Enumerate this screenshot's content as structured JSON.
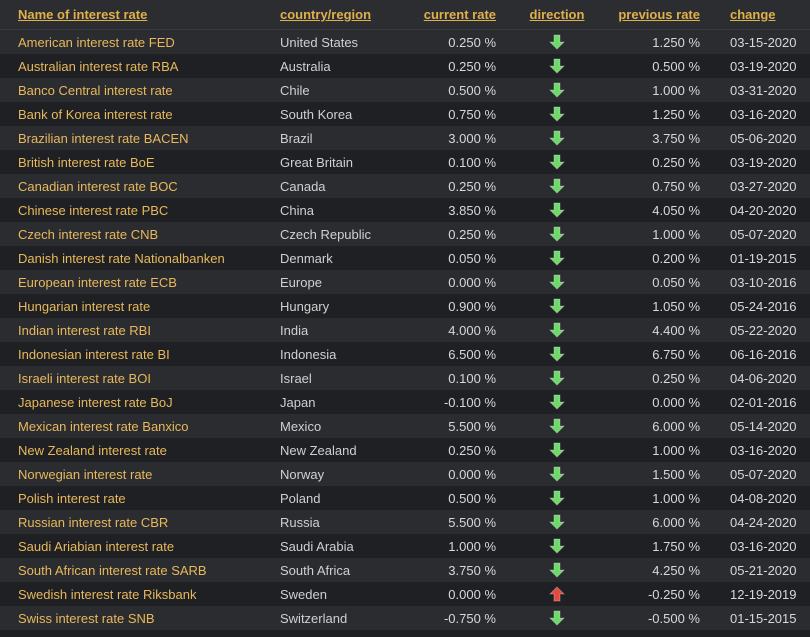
{
  "headers": {
    "name": "Name of interest rate",
    "country": "country/region",
    "current": "current rate",
    "direction": "direction",
    "previous": "previous rate",
    "change": "change"
  },
  "rows": [
    {
      "name": "American interest rate FED",
      "country": "United States",
      "current": "0.250 %",
      "direction": "down",
      "previous": "1.250 %",
      "change": "03-15-2020"
    },
    {
      "name": "Australian interest rate RBA",
      "country": "Australia",
      "current": "0.250 %",
      "direction": "down",
      "previous": "0.500 %",
      "change": "03-19-2020"
    },
    {
      "name": "Banco Central interest rate",
      "country": "Chile",
      "current": "0.500 %",
      "direction": "down",
      "previous": "1.000 %",
      "change": "03-31-2020"
    },
    {
      "name": "Bank of Korea interest rate",
      "country": "South Korea",
      "current": "0.750 %",
      "direction": "down",
      "previous": "1.250 %",
      "change": "03-16-2020"
    },
    {
      "name": "Brazilian interest rate BACEN",
      "country": "Brazil",
      "current": "3.000 %",
      "direction": "down",
      "previous": "3.750 %",
      "change": "05-06-2020"
    },
    {
      "name": "British interest rate BoE",
      "country": "Great Britain",
      "current": "0.100 %",
      "direction": "down",
      "previous": "0.250 %",
      "change": "03-19-2020"
    },
    {
      "name": "Canadian interest rate BOC",
      "country": "Canada",
      "current": "0.250 %",
      "direction": "down",
      "previous": "0.750 %",
      "change": "03-27-2020"
    },
    {
      "name": "Chinese interest rate PBC",
      "country": "China",
      "current": "3.850 %",
      "direction": "down",
      "previous": "4.050 %",
      "change": "04-20-2020"
    },
    {
      "name": "Czech interest rate CNB",
      "country": "Czech Republic",
      "current": "0.250 %",
      "direction": "down",
      "previous": "1.000 %",
      "change": "05-07-2020"
    },
    {
      "name": "Danish interest rate Nationalbanken",
      "country": "Denmark",
      "current": "0.050 %",
      "direction": "down",
      "previous": "0.200 %",
      "change": "01-19-2015"
    },
    {
      "name": "European interest rate ECB",
      "country": "Europe",
      "current": "0.000 %",
      "direction": "down",
      "previous": "0.050 %",
      "change": "03-10-2016"
    },
    {
      "name": "Hungarian interest rate",
      "country": "Hungary",
      "current": "0.900 %",
      "direction": "down",
      "previous": "1.050 %",
      "change": "05-24-2016"
    },
    {
      "name": "Indian interest rate RBI",
      "country": "India",
      "current": "4.000 %",
      "direction": "down",
      "previous": "4.400 %",
      "change": "05-22-2020"
    },
    {
      "name": "Indonesian interest rate BI",
      "country": "Indonesia",
      "current": "6.500 %",
      "direction": "down",
      "previous": "6.750 %",
      "change": "06-16-2016"
    },
    {
      "name": "Israeli interest rate BOI",
      "country": "Israel",
      "current": "0.100 %",
      "direction": "down",
      "previous": "0.250 %",
      "change": "04-06-2020"
    },
    {
      "name": "Japanese interest rate BoJ",
      "country": "Japan",
      "current": "-0.100 %",
      "direction": "down",
      "previous": "0.000 %",
      "change": "02-01-2016"
    },
    {
      "name": "Mexican interest rate Banxico",
      "country": "Mexico",
      "current": "5.500 %",
      "direction": "down",
      "previous": "6.000 %",
      "change": "05-14-2020"
    },
    {
      "name": "New Zealand interest rate",
      "country": "New Zealand",
      "current": "0.250 %",
      "direction": "down",
      "previous": "1.000 %",
      "change": "03-16-2020"
    },
    {
      "name": "Norwegian interest rate",
      "country": "Norway",
      "current": "0.000 %",
      "direction": "down",
      "previous": "1.500 %",
      "change": "05-07-2020"
    },
    {
      "name": "Polish interest rate",
      "country": "Poland",
      "current": "0.500 %",
      "direction": "down",
      "previous": "1.000 %",
      "change": "04-08-2020"
    },
    {
      "name": "Russian interest rate CBR",
      "country": "Russia",
      "current": "5.500 %",
      "direction": "down",
      "previous": "6.000 %",
      "change": "04-24-2020"
    },
    {
      "name": "Saudi Ariabian interest rate",
      "country": "Saudi Arabia",
      "current": "1.000 %",
      "direction": "down",
      "previous": "1.750 %",
      "change": "03-16-2020"
    },
    {
      "name": "South African interest rate SARB",
      "country": "South Africa",
      "current": "3.750 %",
      "direction": "down",
      "previous": "4.250 %",
      "change": "05-21-2020"
    },
    {
      "name": "Swedish interest rate Riksbank",
      "country": "Sweden",
      "current": "0.000 %",
      "direction": "up",
      "previous": "-0.250 %",
      "change": "12-19-2019"
    },
    {
      "name": "Swiss interest rate SNB",
      "country": "Switzerland",
      "current": "-0.750 %",
      "direction": "down",
      "previous": "-0.500 %",
      "change": "01-15-2015"
    }
  ],
  "colors": {
    "arrow_down": "#6fd86a",
    "arrow_up": "#e24a3f",
    "name_link": "#e8b85c"
  }
}
